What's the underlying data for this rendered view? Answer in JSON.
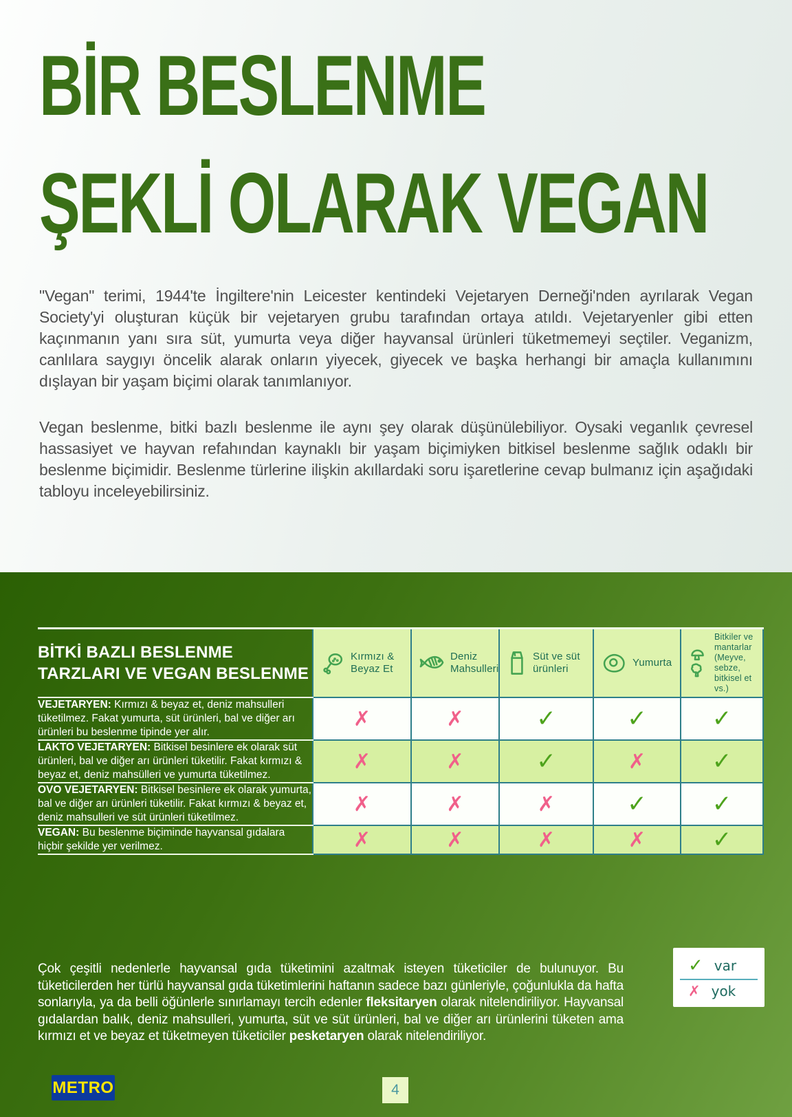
{
  "title": {
    "line1": "BİR BESLENME",
    "line2": "ŞEKLİ OLARAK VEGAN"
  },
  "intro": {
    "p1": "\"Vegan\" terimi, 1944'te İngiltere'nin Leicester kentindeki Vejetaryen Derneği'nden ayrılarak Vegan Society'yi oluşturan küçük bir vejetaryen grubu tarafından ortaya atıldı. Vejetaryenler gibi etten kaçınmanın yanı sıra süt, yumurta veya diğer hayvansal ürünleri tüketmemeyi seçtiler. Veganizm, canlılara saygıyı öncelik alarak onların yiyecek, giyecek ve başka herhangi bir amaçla kullanımını dışlayan bir yaşam biçimi olarak tanımlanıyor.",
    "p2": "Vegan beslenme, bitki bazlı beslenme ile aynı şey olarak düşünülebiliyor. Oysaki veganlık çevresel hassasiyet ve hayvan refahından kaynaklı bir yaşam biçimiyken bitkisel beslenme sağlık odaklı bir beslenme biçimidir. Beslenme türlerine ilişkin akıllardaki soru işaretlerine cevap bulmanız için aşağıdaki tabloyu inceleyebilirsiniz."
  },
  "table": {
    "left_title": "BİTKİ BAZLI BESLENME TARZLARI VE VEGAN BESLENME",
    "columns": [
      {
        "icon": "meat-icon",
        "label": "Kırmızı & Beyaz Et",
        "small": false
      },
      {
        "icon": "fish-icon",
        "label": "Deniz Mahsulleri",
        "small": false
      },
      {
        "icon": "milk-carton-icon",
        "label": "Süt ve süt ürünleri",
        "small": false
      },
      {
        "icon": "egg-icon",
        "label": "Yumurta",
        "small": false
      },
      {
        "icon": "plants-mushrooms-icon",
        "label": "Bitkiler ve mantarlar (Meyve, sebze, bitkisel et vs.)",
        "small": true
      }
    ],
    "rows": [
      {
        "label": "VEJETARYEN:",
        "description": " Kırmızı & beyaz et, deniz mahsulleri tüketilmez. Fakat yumurta, süt ürünleri, bal ve diğer arı ürünleri bu beslenme tipinde yer alır.",
        "marks": [
          "no",
          "no",
          "yes",
          "yes",
          "yes"
        ]
      },
      {
        "label": "LAKTO VEJETARYEN:",
        "description": " Bitkisel besinlere ek olarak süt ürünleri, bal ve diğer arı ürünleri tüketilir. Fakat kırmızı & beyaz et, deniz mahsülleri ve yumurta tüketilmez.",
        "marks": [
          "no",
          "no",
          "yes",
          "no",
          "yes"
        ]
      },
      {
        "label": "OVO VEJETARYEN:",
        "description": " Bitkisel besinlere ek olarak yumurta, bal ve diğer arı ürünleri tüketilir. Fakat kırmızı & beyaz et, deniz mahsulleri ve süt ürünleri tüketilmez.",
        "marks": [
          "no",
          "no",
          "no",
          "yes",
          "yes"
        ]
      },
      {
        "label": "VEGAN:",
        "description": " Bu beslenme biçiminde hayvansal gıdalara hiçbir şekilde yer verilmez.",
        "marks": [
          "no",
          "no",
          "no",
          "no",
          "yes"
        ]
      }
    ],
    "mark_glyphs": {
      "yes": "✓",
      "no": "✗"
    }
  },
  "footer": {
    "segments": [
      {
        "text": "Çok çeşitli nedenlerle hayvansal gıda tüketimini azaltmak isteyen tüketiciler de bulunuyor. Bu tüketicilerden her türlü hayvansal gıda tüketimlerini haftanın sadece bazı günleriyle, çoğunlukla da hafta sonlarıyla, ya da belli öğünlerle sınırlamayı tercih edenler ",
        "bold": false
      },
      {
        "text": "fleksitaryen",
        "bold": true
      },
      {
        "text": " olarak nitelendiriliyor. Hayvansal gıdalardan balık, deniz mahsulleri, yumurta, süt ve süt ürünleri, bal ve diğer arı ürünlerini tüketen ama kırmızı et ve beyaz et tüketmeyen tüketiciler ",
        "bold": false
      },
      {
        "text": "pesketaryen",
        "bold": true
      },
      {
        "text": " olarak nitelendiriliyor.",
        "bold": false
      }
    ]
  },
  "legend": {
    "yes_glyph": "✓",
    "yes_label": "var",
    "no_glyph": "✗",
    "no_label": "yok"
  },
  "logo": {
    "text": "METRO"
  },
  "page": {
    "number": "4"
  },
  "colors": {
    "title_green": "#3a7017",
    "section_green_dark": "#2b6004",
    "section_green_light": "#6fa041",
    "cell_green": "#d7f0a2",
    "header_cell_green": "#def3ae",
    "table_border_teal": "#2e7f8a",
    "check_green": "#4ea31c",
    "cross_pink": "#f0608a",
    "metro_blue": "#0b3a9e",
    "metro_yellow": "#ffe600"
  }
}
